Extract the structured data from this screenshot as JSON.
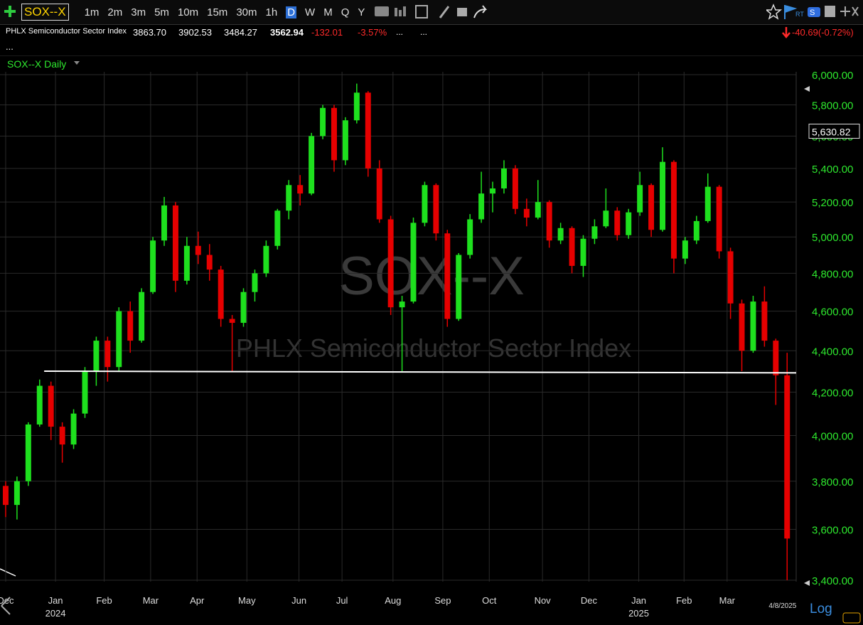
{
  "toolbar": {
    "symbol": "SOX--X",
    "intervals": [
      "1m",
      "2m",
      "3m",
      "5m",
      "10m",
      "15m",
      "30m",
      "1h",
      "D",
      "W",
      "M",
      "Q",
      "Y"
    ]
  },
  "quote": {
    "name": "PHLX Semiconductor Sector Index",
    "open": "3863.70",
    "high": "3902.53",
    "low": "3484.27",
    "last": "3562.94",
    "change": "-132.01",
    "change_pct": "-3.57%",
    "more_1": "...",
    "more_2": "...",
    "after_hours": "-40.69(-0.72%)",
    "menu": "..."
  },
  "chart_data": {
    "type": "candlestick",
    "title": "SOX--X Daily",
    "watermark": "SOX--X",
    "watermark_subtitle": "PHLX Semiconductor Sector Index",
    "log_scale": true,
    "up_color": "#1ee01e",
    "down_color": "#e60000",
    "open": [
      3780,
      3700,
      3800,
      4050,
      4230,
      4040,
      3960,
      4100,
      4300,
      4450,
      4320,
      4600,
      4450,
      4700,
      4980,
      5180,
      4760,
      4950,
      4900,
      4820,
      4560,
      4540,
      4700,
      4800,
      4950,
      5150,
      5300,
      5250,
      5600,
      5780,
      5450,
      5700,
      5880,
      5400,
      5100,
      4620,
      4650,
      5080,
      5300,
      5020,
      4560,
      4900,
      5100,
      5250,
      5280,
      5400,
      5160,
      5110,
      5200,
      4980,
      5050,
      4840,
      4990,
      5060,
      5150,
      5010,
      5140,
      5300,
      5040,
      5440,
      4880,
      4980,
      5090,
      5290,
      4920,
      4640,
      4400,
      4650,
      4450,
      4280
    ],
    "high": [
      3800,
      3820,
      4060,
      4260,
      4250,
      4060,
      4120,
      4320,
      4470,
      4470,
      4620,
      4650,
      4720,
      5000,
      5230,
      5200,
      5000,
      5030,
      4960,
      4840,
      4580,
      4720,
      4820,
      4980,
      5160,
      5330,
      5360,
      5620,
      5800,
      5800,
      5720,
      5940,
      5890,
      5450,
      5120,
      4680,
      5110,
      5320,
      5310,
      5040,
      4910,
      5130,
      5380,
      5320,
      5450,
      5420,
      5220,
      5330,
      5210,
      5080,
      5060,
      5010,
      5100,
      5280,
      5170,
      5160,
      5380,
      5310,
      5530,
      5450,
      5000,
      5120,
      5370,
      5300,
      4940,
      4660,
      4680,
      4730,
      4460,
      4390
    ],
    "low": [
      3650,
      3640,
      3780,
      4040,
      3980,
      3880,
      3940,
      4080,
      4230,
      4250,
      4300,
      4390,
      4440,
      4690,
      4950,
      4700,
      4740,
      4850,
      4760,
      4520,
      4300,
      4520,
      4650,
      4780,
      4930,
      5100,
      5180,
      5240,
      5580,
      5380,
      5420,
      5680,
      5350,
      5080,
      4580,
      4300,
      4640,
      5060,
      4980,
      4520,
      4550,
      4880,
      5080,
      5140,
      5250,
      5130,
      5060,
      5100,
      4940,
      4960,
      4800,
      4780,
      4960,
      5050,
      4980,
      4990,
      5120,
      5000,
      5030,
      4800,
      4850,
      4960,
      5080,
      4880,
      4560,
      4300,
      4390,
      4420,
      4140,
      3400
    ],
    "close": [
      3700,
      3800,
      4050,
      4230,
      4040,
      3960,
      4100,
      4300,
      4450,
      4320,
      4600,
      4450,
      4700,
      4980,
      5180,
      4760,
      4950,
      4900,
      4820,
      4560,
      4540,
      4700,
      4800,
      4950,
      5150,
      5300,
      5250,
      5600,
      5780,
      5450,
      5700,
      5880,
      5400,
      5100,
      4620,
      4650,
      5080,
      5300,
      5020,
      4560,
      4900,
      5100,
      5250,
      5280,
      5400,
      5160,
      5110,
      5200,
      4980,
      5050,
      4840,
      4990,
      5060,
      5150,
      5010,
      5140,
      5300,
      5040,
      5440,
      4880,
      4980,
      5090,
      5290,
      4920,
      4640,
      4400,
      4650,
      4450,
      4280,
      3562.94
    ],
    "xlim": [
      -0.5,
      69.8
    ],
    "xticks": [
      {
        "value": 0,
        "label": "Dec"
      },
      {
        "value": 4.4,
        "label": "Jan"
      },
      {
        "value": 8.7,
        "label": "Feb"
      },
      {
        "value": 12.8,
        "label": "Mar"
      },
      {
        "value": 16.9,
        "label": "Apr"
      },
      {
        "value": 21.3,
        "label": "May"
      },
      {
        "value": 25.9,
        "label": "Jun"
      },
      {
        "value": 29.7,
        "label": "Jul"
      },
      {
        "value": 34.2,
        "label": "Aug"
      },
      {
        "value": 38.6,
        "label": "Sep"
      },
      {
        "value": 42.7,
        "label": "Oct"
      },
      {
        "value": 47.4,
        "label": "Nov"
      },
      {
        "value": 51.5,
        "label": "Dec"
      },
      {
        "value": 55.9,
        "label": "Jan"
      },
      {
        "value": 59.9,
        "label": "Feb"
      },
      {
        "value": 63.7,
        "label": "Mar"
      }
    ],
    "year_labels": [
      {
        "value": 4.4,
        "label": "2024"
      },
      {
        "value": 55.9,
        "label": "2025"
      }
    ],
    "last_date_label": {
      "value": 68.6,
      "label": "4/8/2025"
    },
    "ylim": [
      3400,
      6000
    ],
    "yticks": [
      {
        "value": 3400,
        "label": "3,400.00"
      },
      {
        "value": 3600,
        "label": "3,600.00"
      },
      {
        "value": 3800,
        "label": "3,800.00"
      },
      {
        "value": 4000,
        "label": "4,000.00"
      },
      {
        "value": 4200,
        "label": "4,200.00"
      },
      {
        "value": 4400,
        "label": "4,400.00"
      },
      {
        "value": 4600,
        "label": "4,600.00"
      },
      {
        "value": 4800,
        "label": "4,800.00"
      },
      {
        "value": 5000,
        "label": "5,000.00"
      },
      {
        "value": 5200,
        "label": "5,200.00"
      },
      {
        "value": 5400,
        "label": "5,400.00"
      },
      {
        "value": 5600,
        "label": "5,600.00"
      },
      {
        "value": 5800,
        "label": "5,800.00"
      },
      {
        "value": 6000,
        "label": "6,000.00"
      }
    ],
    "price_marker": {
      "value": 5630.82,
      "label": "5,630.82"
    },
    "support_line": {
      "x": [
        3.4,
        69.8
      ],
      "y": [
        4300,
        4292
      ]
    },
    "grid": true,
    "scale_label": "Log"
  }
}
